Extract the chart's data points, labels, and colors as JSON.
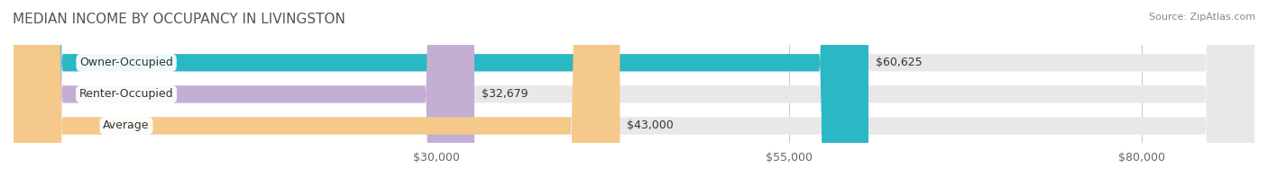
{
  "title": "MEDIAN INCOME BY OCCUPANCY IN LIVINGSTON",
  "source": "Source: ZipAtlas.com",
  "categories": [
    "Owner-Occupied",
    "Renter-Occupied",
    "Average"
  ],
  "values": [
    60625,
    32679,
    43000
  ],
  "bar_colors": [
    "#2ab8c5",
    "#c4aed4",
    "#f5c98a"
  ],
  "bar_bg_color": "#e8e8e8",
  "value_labels": [
    "$60,625",
    "$32,679",
    "$43,000"
  ],
  "x_ticks": [
    30000,
    55000,
    80000
  ],
  "x_tick_labels": [
    "$30,000",
    "$55,000",
    "$80,000"
  ],
  "x_min": 0,
  "x_max": 88000,
  "title_fontsize": 11,
  "label_fontsize": 9,
  "source_fontsize": 8,
  "bar_height": 0.55,
  "figwidth": 14.06,
  "figheight": 1.97,
  "dpi": 100
}
